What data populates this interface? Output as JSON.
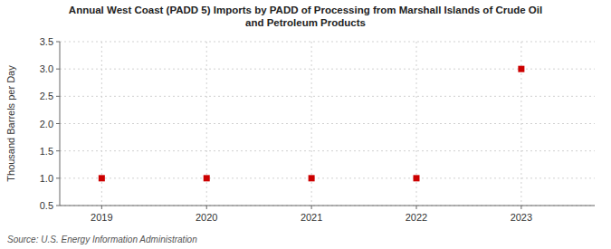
{
  "chart_data": {
    "type": "scatter",
    "title": "Annual West Coast (PADD 5) Imports by PADD of Processing from Marshall Islands of Crude Oil\nand Petroleum Products",
    "y_label": "Thousand Barrels per Day",
    "source": "Source: U.S. Energy Information Administration",
    "x": [
      2019,
      2020,
      2021,
      2022,
      2023
    ],
    "values": [
      1.0,
      1.0,
      1.0,
      1.0,
      3.0
    ],
    "color": "#cc0000",
    "marker": "square",
    "xlim": [
      2018.6,
      2023.7
    ],
    "xticks": [
      2019,
      2020,
      2021,
      2022,
      2023
    ],
    "ylim": [
      0.5,
      3.5
    ],
    "yticks": [
      0.5,
      {
        "value": 1.0,
        "label": "1.0"
      },
      1.5,
      {
        "value": 2.0,
        "label": "2.0"
      },
      2.5,
      {
        "value": 3.0,
        "label": "3.0"
      },
      3.5
    ],
    "grid": true
  }
}
